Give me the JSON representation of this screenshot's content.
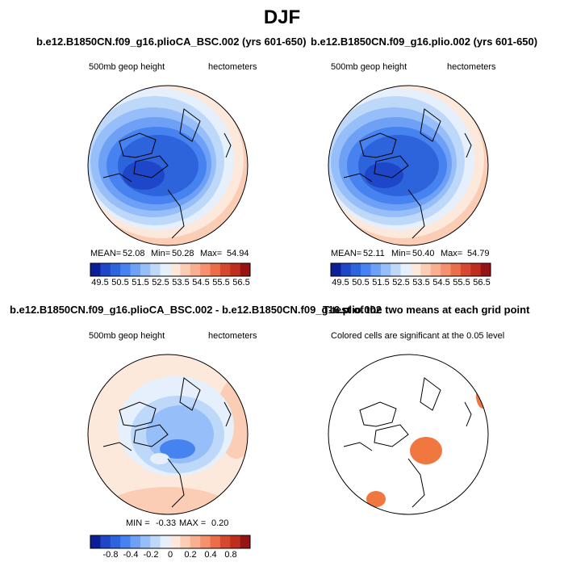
{
  "title": "DJF",
  "panels": [
    {
      "title": "b.e12.B1850CN.f09_g16.plioCA_BSC.002 (yrs 601-650)",
      "label_left": "500mb geop height",
      "label_right": "hectometers",
      "stats": {
        "mean_label": "MEAN=",
        "mean": "52.08",
        "min_label": "Min=",
        "min": "50.28",
        "max_label": "Max=",
        "max": "54.94"
      },
      "colorbar_ticks": [
        "49.5",
        "50.5",
        "51.5",
        "52.5",
        "53.5",
        "54.5",
        "55.5",
        "56.5"
      ]
    },
    {
      "title": "b.e12.B1850CN.f09_g16.plio.002 (yrs 601-650)",
      "label_left": "500mb geop height",
      "label_right": "hectometers",
      "stats": {
        "mean_label": "MEAN=",
        "mean": "52.11",
        "min_label": "Min=",
        "min": "50.40",
        "max_label": "Max=",
        "max": "54.79"
      },
      "colorbar_ticks": [
        "49.5",
        "50.5",
        "51.5",
        "52.5",
        "53.5",
        "54.5",
        "55.5",
        "56.5"
      ]
    },
    {
      "title": "b.e12.B1850CN.f09_g16.plioCA_BSC.002 - b.e12.B1850CN.f09_g16.plio.002",
      "label_left": "500mb geop height",
      "label_right": "hectometers",
      "stats": {
        "min_label": "MIN =",
        "min": "-0.33",
        "max_label": "MAX =",
        "max": "0.20"
      },
      "colorbar_ticks": [
        "-0.8",
        "-0.4",
        "-0.2",
        "0",
        "0.2",
        "0.4",
        "0.8"
      ]
    },
    {
      "title": "T-test of the two means at each grid point",
      "label_left": "Colored cells are significant at the 0.05 level"
    }
  ],
  "colors": {
    "colorbar": [
      "#0a1e96",
      "#1e46c8",
      "#2d64dc",
      "#4682f0",
      "#6ea0f5",
      "#96bef8",
      "#bed8fa",
      "#e6f0fc",
      "#fde8dc",
      "#fbcdb4",
      "#f8b090",
      "#f5916e",
      "#eb6e4b",
      "#d74832",
      "#be2d1e",
      "#961414"
    ],
    "significant": "#f07840",
    "coast": "#000000",
    "outline": "#000000"
  }
}
